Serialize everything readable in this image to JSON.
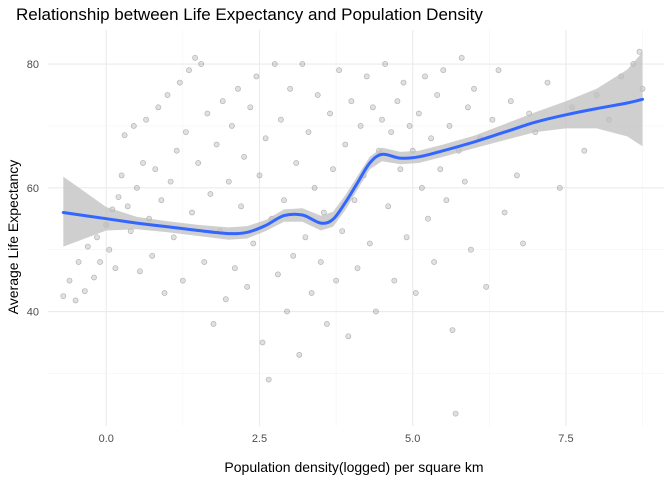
{
  "chart_data": {
    "type": "scatter",
    "title": "Relationship between Life Expectancy and Population Density",
    "xlabel": "Population density(logged) per square km",
    "ylabel": "Average Life Expectancy",
    "xlim": [
      -0.95,
      9.1
    ],
    "ylim": [
      21.5,
      85.5
    ],
    "x_ticks": [
      0,
      2.5,
      5,
      7.5
    ],
    "x_tick_labels": [
      "0.0",
      "2.5",
      "5.0",
      "7.5"
    ],
    "y_ticks": [
      40,
      60,
      80
    ],
    "y_tick_labels": [
      "40",
      "60",
      "80"
    ],
    "grid": true,
    "legend": "none",
    "point_color": "#000000",
    "point_alpha": 0.12,
    "smooth": {
      "method": "loess",
      "color": "#3366ff",
      "band_color": "#bfbfbf",
      "x": [
        -0.7,
        0.0,
        0.5,
        1.0,
        1.5,
        2.0,
        2.3,
        2.6,
        2.9,
        3.2,
        3.5,
        3.7,
        3.9,
        4.1,
        4.3,
        4.5,
        4.8,
        5.1,
        5.5,
        6.0,
        6.5,
        7.0,
        7.5,
        8.0,
        8.5,
        8.75
      ],
      "y": [
        56.0,
        55.0,
        54.3,
        53.7,
        53.1,
        52.6,
        52.8,
        53.9,
        55.5,
        55.6,
        54.3,
        54.9,
        57.6,
        60.8,
        64.0,
        65.4,
        64.8,
        65.0,
        66.0,
        67.4,
        69.0,
        70.6,
        71.8,
        72.8,
        73.7,
        74.3
      ],
      "lower": [
        50.5,
        53.1,
        53.3,
        52.8,
        52.2,
        51.6,
        51.8,
        53.0,
        54.5,
        54.5,
        53.1,
        53.7,
        56.4,
        59.7,
        63.0,
        64.3,
        63.8,
        64.0,
        65.0,
        66.4,
        67.7,
        69.0,
        69.6,
        69.6,
        68.3,
        66.7
      ],
      "upper": [
        61.8,
        56.9,
        55.3,
        54.6,
        54.0,
        53.6,
        53.8,
        54.8,
        56.5,
        56.7,
        55.5,
        56.1,
        58.8,
        61.9,
        65.0,
        66.5,
        65.8,
        66.0,
        67.0,
        68.4,
        70.3,
        72.2,
        74.0,
        76.0,
        79.1,
        81.9
      ]
    },
    "points": [
      [
        -0.7,
        42.5
      ],
      [
        -0.6,
        45.0
      ],
      [
        -0.5,
        41.8
      ],
      [
        -0.45,
        48.0
      ],
      [
        -0.35,
        43.3
      ],
      [
        -0.3,
        50.5
      ],
      [
        -0.2,
        45.5
      ],
      [
        -0.15,
        52.0
      ],
      [
        -0.1,
        48.0
      ],
      [
        0.0,
        54.0
      ],
      [
        0.05,
        50.0
      ],
      [
        0.1,
        56.5
      ],
      [
        0.15,
        47.0
      ],
      [
        0.2,
        58.5
      ],
      [
        0.25,
        62.0
      ],
      [
        0.3,
        68.5
      ],
      [
        0.35,
        57.0
      ],
      [
        0.4,
        53.0
      ],
      [
        0.45,
        70.0
      ],
      [
        0.5,
        60.0
      ],
      [
        0.55,
        46.5
      ],
      [
        0.6,
        64.0
      ],
      [
        0.65,
        71.0
      ],
      [
        0.7,
        55.0
      ],
      [
        0.75,
        49.0
      ],
      [
        0.8,
        63.0
      ],
      [
        0.85,
        73.0
      ],
      [
        0.9,
        58.0
      ],
      [
        0.95,
        43.0
      ],
      [
        1.0,
        75.0
      ],
      [
        1.05,
        61.0
      ],
      [
        1.1,
        52.0
      ],
      [
        1.15,
        66.0
      ],
      [
        1.2,
        77.0
      ],
      [
        1.25,
        45.0
      ],
      [
        1.3,
        69.0
      ],
      [
        1.35,
        79.0
      ],
      [
        1.4,
        56.0
      ],
      [
        1.45,
        81.0
      ],
      [
        1.5,
        64.0
      ],
      [
        1.55,
        80.0
      ],
      [
        1.6,
        48.0
      ],
      [
        1.65,
        72.0
      ],
      [
        1.7,
        59.0
      ],
      [
        1.75,
        38.0
      ],
      [
        1.8,
        67.0
      ],
      [
        1.85,
        53.0
      ],
      [
        1.9,
        74.0
      ],
      [
        1.95,
        42.0
      ],
      [
        2.0,
        61.0
      ],
      [
        2.05,
        70.0
      ],
      [
        2.1,
        47.0
      ],
      [
        2.15,
        76.0
      ],
      [
        2.2,
        57.0
      ],
      [
        2.25,
        65.0
      ],
      [
        2.3,
        44.0
      ],
      [
        2.35,
        73.0
      ],
      [
        2.4,
        51.0
      ],
      [
        2.45,
        78.0
      ],
      [
        2.5,
        62.0
      ],
      [
        2.55,
        35.0
      ],
      [
        2.6,
        68.0
      ],
      [
        2.65,
        29.0
      ],
      [
        2.7,
        55.0
      ],
      [
        2.75,
        80.0
      ],
      [
        2.8,
        46.0
      ],
      [
        2.85,
        71.0
      ],
      [
        2.9,
        58.0
      ],
      [
        2.95,
        40.0
      ],
      [
        3.0,
        76.0
      ],
      [
        3.05,
        49.0
      ],
      [
        3.1,
        64.0
      ],
      [
        3.15,
        33.0
      ],
      [
        3.2,
        80.0
      ],
      [
        3.25,
        52.0
      ],
      [
        3.3,
        69.0
      ],
      [
        3.35,
        43.0
      ],
      [
        3.4,
        60.0
      ],
      [
        3.45,
        75.0
      ],
      [
        3.5,
        48.0
      ],
      [
        3.55,
        56.0
      ],
      [
        3.6,
        38.0
      ],
      [
        3.65,
        72.0
      ],
      [
        3.7,
        63.0
      ],
      [
        3.75,
        45.0
      ],
      [
        3.8,
        79.0
      ],
      [
        3.85,
        53.0
      ],
      [
        3.9,
        67.0
      ],
      [
        3.95,
        36.0
      ],
      [
        4.0,
        74.0
      ],
      [
        4.05,
        58.0
      ],
      [
        4.1,
        47.0
      ],
      [
        4.15,
        70.0
      ],
      [
        4.2,
        62.0
      ],
      [
        4.25,
        78.0
      ],
      [
        4.3,
        51.0
      ],
      [
        4.35,
        73.0
      ],
      [
        4.4,
        40.0
      ],
      [
        4.45,
        66.0
      ],
      [
        4.5,
        71.0
      ],
      [
        4.55,
        80.0
      ],
      [
        4.6,
        57.0
      ],
      [
        4.65,
        69.0
      ],
      [
        4.7,
        45.0
      ],
      [
        4.75,
        74.0
      ],
      [
        4.8,
        63.0
      ],
      [
        4.85,
        77.0
      ],
      [
        4.9,
        52.0
      ],
      [
        4.95,
        70.0
      ],
      [
        5.0,
        66.0
      ],
      [
        5.05,
        43.0
      ],
      [
        5.1,
        72.0
      ],
      [
        5.15,
        60.0
      ],
      [
        5.2,
        78.0
      ],
      [
        5.25,
        55.0
      ],
      [
        5.3,
        68.0
      ],
      [
        5.35,
        48.0
      ],
      [
        5.4,
        75.0
      ],
      [
        5.45,
        63.0
      ],
      [
        5.5,
        79.0
      ],
      [
        5.55,
        58.0
      ],
      [
        5.6,
        70.0
      ],
      [
        5.65,
        37.0
      ],
      [
        5.7,
        23.5
      ],
      [
        5.75,
        66.0
      ],
      [
        5.8,
        81.0
      ],
      [
        5.85,
        61.0
      ],
      [
        5.9,
        73.0
      ],
      [
        5.95,
        50.0
      ],
      [
        6.0,
        76.0
      ],
      [
        6.1,
        68.0
      ],
      [
        6.2,
        44.0
      ],
      [
        6.3,
        71.0
      ],
      [
        6.4,
        79.0
      ],
      [
        6.5,
        56.0
      ],
      [
        6.6,
        74.0
      ],
      [
        6.7,
        62.0
      ],
      [
        6.8,
        51.0
      ],
      [
        6.9,
        72.0
      ],
      [
        7.0,
        69.0
      ],
      [
        7.2,
        77.0
      ],
      [
        7.4,
        60.0
      ],
      [
        7.6,
        73.0
      ],
      [
        7.8,
        66.0
      ],
      [
        8.0,
        75.0
      ],
      [
        8.2,
        71.0
      ],
      [
        8.4,
        78.0
      ],
      [
        8.6,
        80.0
      ],
      [
        8.7,
        82.0
      ],
      [
        8.75,
        76.0
      ]
    ]
  }
}
